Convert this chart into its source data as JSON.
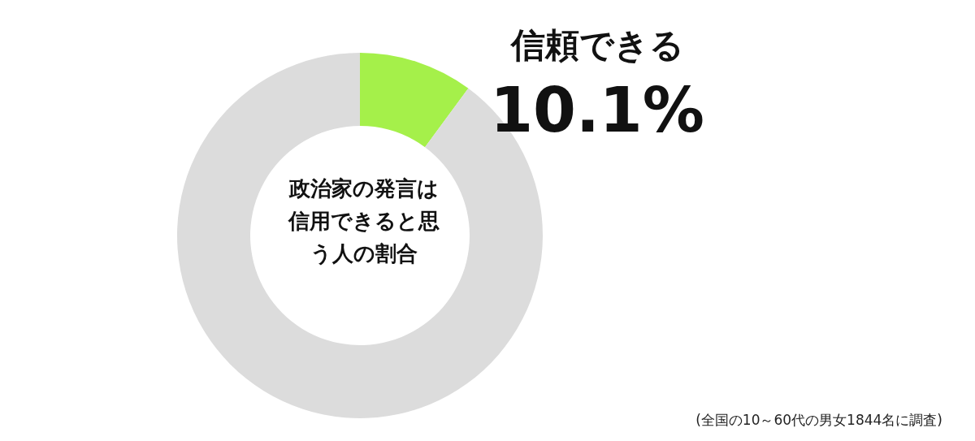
{
  "chart_data": {
    "type": "donut",
    "title": "政治家の発言は信用できると思う人の割合",
    "categories": [
      "信頼できる",
      null
    ],
    "values": [
      10.1,
      89.9
    ],
    "colors": [
      "#a5f04a",
      "#dcdcdc"
    ],
    "value_labels": [
      "10.1%",
      null
    ],
    "annotations": [
      "(全国の10～60代の男女1844名に調査)"
    ]
  }
}
